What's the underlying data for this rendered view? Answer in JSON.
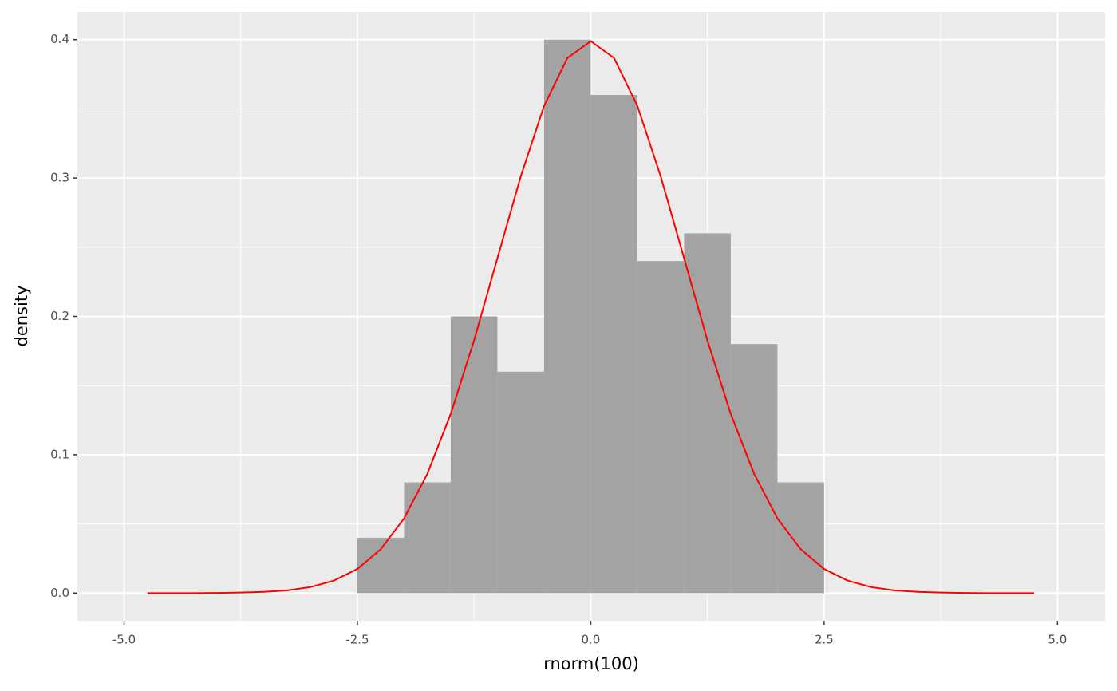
{
  "chart_data": {
    "type": "histogram",
    "x_label": "rnorm(100)",
    "y_label": "density",
    "bins": [
      -2.5,
      -2.0,
      -1.5,
      -1.0,
      -0.5,
      0.0,
      0.5,
      1.0,
      1.5,
      2.0,
      2.5
    ],
    "values": [
      0.04,
      0.08,
      0.2,
      0.16,
      0.4,
      0.36,
      0.24,
      0.26,
      0.18,
      0.08
    ],
    "color": "#a3a3a3",
    "curve": {
      "type": "line",
      "color": "#ff0000",
      "x": [
        -4.75,
        -4.5,
        -4.25,
        -4.0,
        -3.75,
        -3.5,
        -3.25,
        -3.0,
        -2.75,
        -2.5,
        -2.25,
        -2.0,
        -1.75,
        -1.5,
        -1.25,
        -1.0,
        -0.75,
        -0.5,
        -0.25,
        0.0,
        0.25,
        0.5,
        0.75,
        1.0,
        1.25,
        1.5,
        1.75,
        2.0,
        2.25,
        2.5,
        2.75,
        3.0,
        3.25,
        3.5,
        3.75,
        4.0,
        4.25,
        4.5,
        4.75
      ],
      "values": [
        0.0,
        0.0,
        0.0,
        0.0001,
        0.0004,
        0.0009,
        0.002,
        0.0044,
        0.0091,
        0.0175,
        0.0317,
        0.054,
        0.0863,
        0.1295,
        0.1826,
        0.242,
        0.3011,
        0.3521,
        0.3867,
        0.3989,
        0.3867,
        0.3521,
        0.3011,
        0.242,
        0.1826,
        0.1295,
        0.0863,
        0.054,
        0.0317,
        0.0175,
        0.0091,
        0.0044,
        0.002,
        0.0009,
        0.0004,
        0.0001,
        0.0,
        0.0,
        0.0
      ]
    },
    "xlim": [
      -5.5,
      5.51
    ],
    "ylim": [
      -0.02,
      0.42
    ],
    "xticks": [
      {
        "value": -5,
        "label": "-5.0"
      },
      -2.5,
      {
        "value": 0,
        "label": "0.0"
      },
      2.5,
      {
        "value": 5,
        "label": "5.0"
      }
    ],
    "yticks": [
      {
        "value": 0,
        "label": "0.0"
      },
      0.1,
      0.2,
      0.3,
      0.4
    ],
    "x_minor_ticks": [
      -3.75,
      -1.25,
      1.25,
      3.75
    ],
    "y_minor_ticks": [
      0.05,
      0.15,
      0.25,
      0.35
    ],
    "grid": true
  }
}
